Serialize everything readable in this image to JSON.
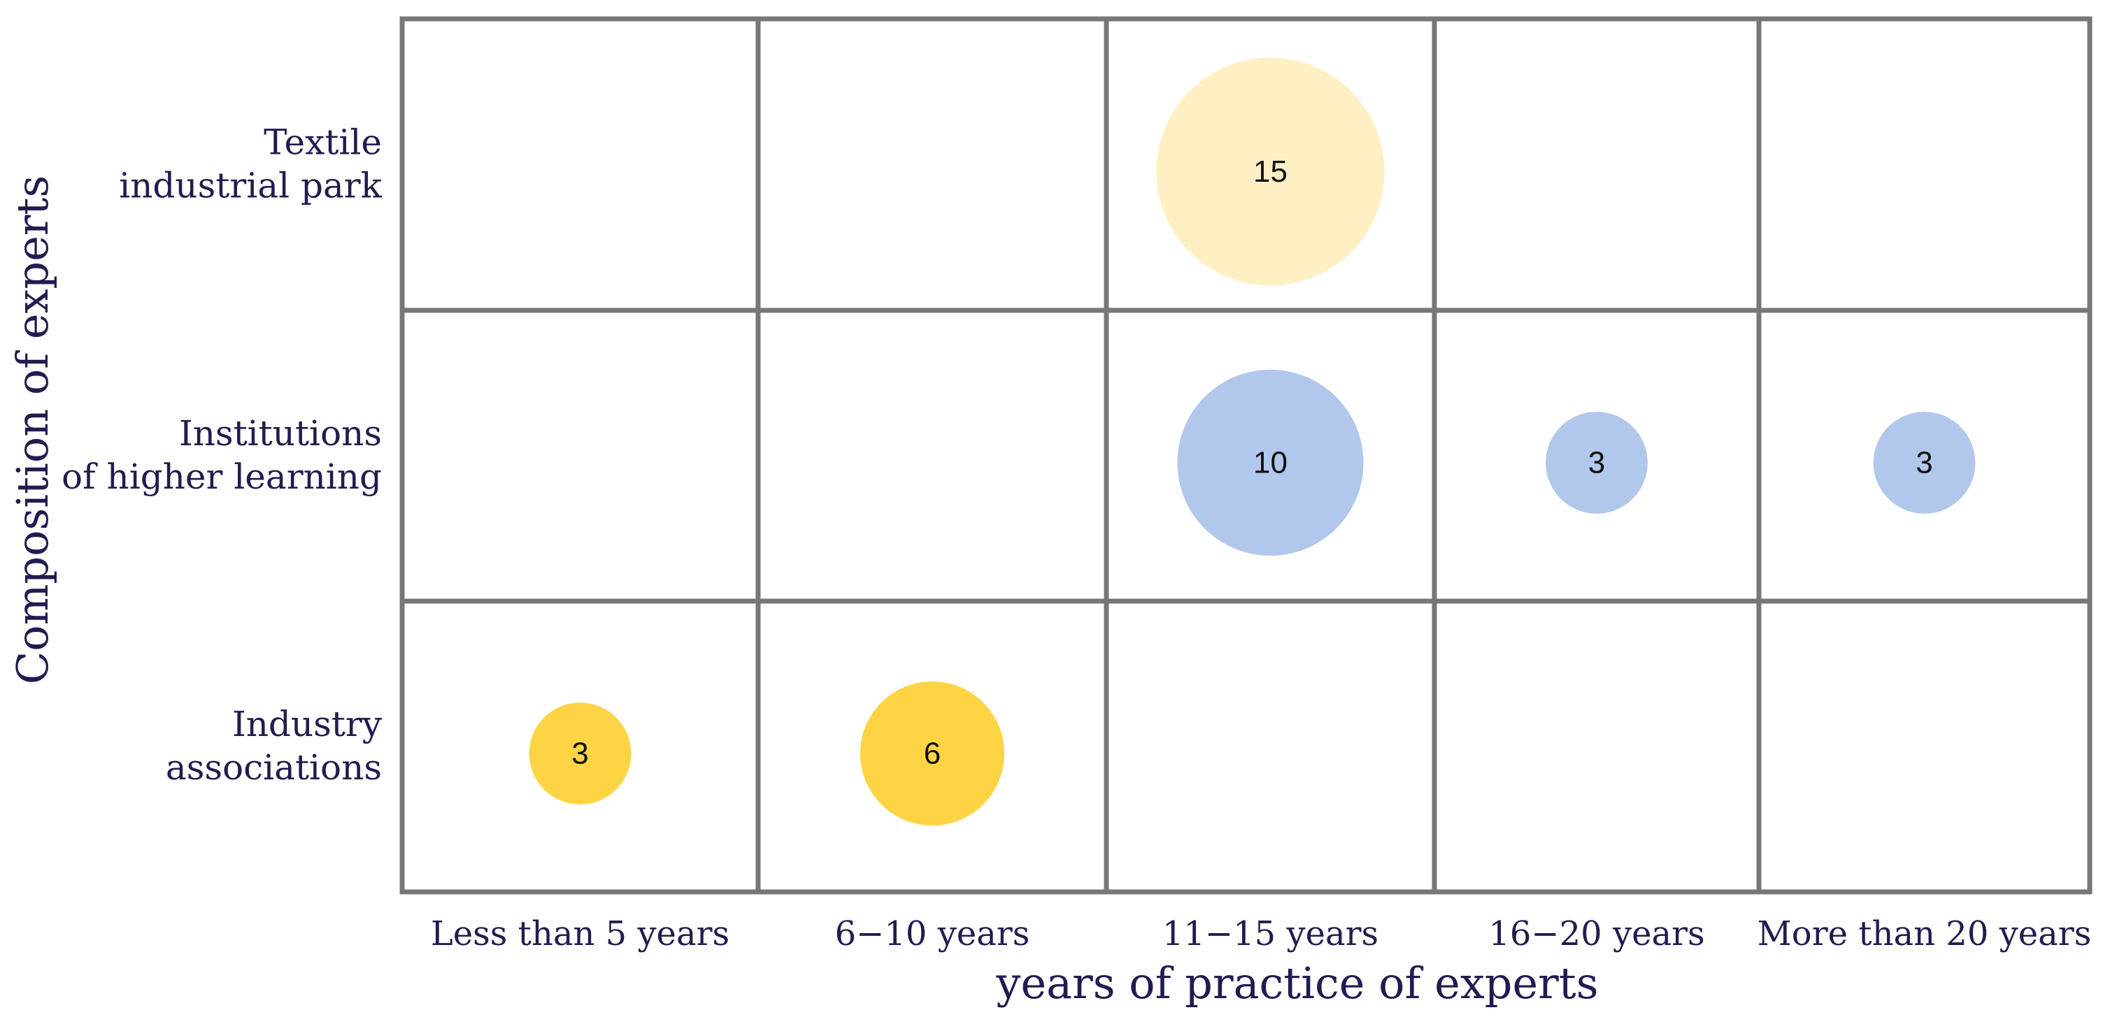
{
  "chart_data": {
    "type": "bubble",
    "title": "",
    "xlabel": "years of practice of experts",
    "ylabel": "Composition of experts",
    "x_categories": [
      "Less than 5 years",
      "6−10 years",
      "11−15 years",
      "16−20 years",
      "More than 20 years"
    ],
    "y_categories": [
      [
        "Textile",
        "industrial park"
      ],
      [
        "Institutions",
        "of higher learning"
      ],
      [
        "Industry",
        "associations"
      ]
    ],
    "grid": true,
    "legend": "none",
    "size_max": 15,
    "points": [
      {
        "x": "11−15 years",
        "y": "Textile industrial park",
        "value": 15,
        "label": "15",
        "color": "#fff0c4"
      },
      {
        "x": "11−15 years",
        "y": "Institutions of higher learning",
        "value": 10,
        "label": "10",
        "color": "#b2c7ec"
      },
      {
        "x": "16−20 years",
        "y": "Institutions of higher learning",
        "value": 3,
        "label": "3",
        "color": "#b2c7ec"
      },
      {
        "x": "More than 20 years",
        "y": "Institutions of higher learning",
        "value": 3,
        "label": "3",
        "color": "#b2c7ec"
      },
      {
        "x": "Less than 5 years",
        "y": "Industry associations",
        "value": 3,
        "label": "3",
        "color": "#fed444"
      },
      {
        "x": "6−10 years",
        "y": "Industry associations",
        "value": 6,
        "label": "6",
        "color": "#fed444"
      }
    ]
  }
}
